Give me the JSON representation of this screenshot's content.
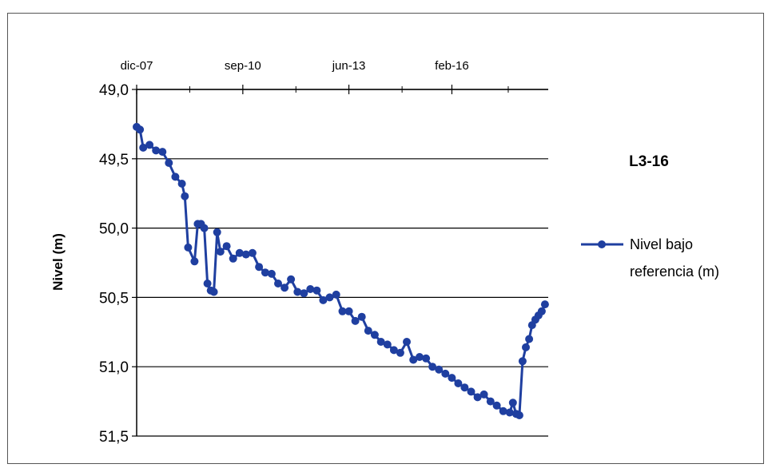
{
  "chart_data": {
    "type": "line",
    "title": "L3-16",
    "xlabel": "",
    "ylabel": "Nivel (m)",
    "x_tick_labels": [
      "dic-07",
      "sep-10",
      "jun-13",
      "feb-16"
    ],
    "x_tick_dates": [
      "2007-12-01",
      "2010-09-01",
      "2013-06-01",
      "2016-02-01"
    ],
    "xlim": [
      "2007-12-01",
      "2018-08-01"
    ],
    "ylim": [
      49.0,
      51.5
    ],
    "y_inverted": true,
    "y_ticks": [
      49.0,
      49.5,
      50.0,
      50.5,
      51.0,
      51.5
    ],
    "y_tick_labels": [
      "49,0",
      "49,5",
      "50,0",
      "50,5",
      "51,0",
      "51,5"
    ],
    "x_axis_position": "top",
    "grid": "horizontal",
    "legend_position": "right",
    "series": [
      {
        "name": "Nivel bajo referencia (m)",
        "color": "#1f3fa0",
        "points": [
          [
            "2007-12-01",
            49.27
          ],
          [
            "2008-01-01",
            49.29
          ],
          [
            "2008-02-01",
            49.42
          ],
          [
            "2008-04-01",
            49.4
          ],
          [
            "2008-06-01",
            49.44
          ],
          [
            "2008-08-01",
            49.45
          ],
          [
            "2008-10-01",
            49.53
          ],
          [
            "2008-12-01",
            49.63
          ],
          [
            "2009-02-01",
            49.68
          ],
          [
            "2009-03-01",
            49.77
          ],
          [
            "2009-04-01",
            50.14
          ],
          [
            "2009-06-01",
            50.24
          ],
          [
            "2009-07-01",
            49.97
          ],
          [
            "2009-08-01",
            49.97
          ],
          [
            "2009-09-01",
            50.0
          ],
          [
            "2009-10-01",
            50.4
          ],
          [
            "2009-11-01",
            50.45
          ],
          [
            "2009-12-01",
            50.46
          ],
          [
            "2010-01-01",
            50.03
          ],
          [
            "2010-02-01",
            50.17
          ],
          [
            "2010-04-01",
            50.13
          ],
          [
            "2010-06-01",
            50.22
          ],
          [
            "2010-08-01",
            50.18
          ],
          [
            "2010-10-01",
            50.19
          ],
          [
            "2010-12-01",
            50.18
          ],
          [
            "2011-02-01",
            50.28
          ],
          [
            "2011-04-01",
            50.32
          ],
          [
            "2011-06-01",
            50.33
          ],
          [
            "2011-08-01",
            50.4
          ],
          [
            "2011-10-01",
            50.43
          ],
          [
            "2011-12-01",
            50.37
          ],
          [
            "2012-02-01",
            50.46
          ],
          [
            "2012-04-01",
            50.47
          ],
          [
            "2012-06-01",
            50.44
          ],
          [
            "2012-08-01",
            50.45
          ],
          [
            "2012-10-01",
            50.52
          ],
          [
            "2012-12-01",
            50.5
          ],
          [
            "2013-02-01",
            50.48
          ],
          [
            "2013-04-01",
            50.6
          ],
          [
            "2013-06-01",
            50.6
          ],
          [
            "2013-08-01",
            50.67
          ],
          [
            "2013-10-01",
            50.64
          ],
          [
            "2013-12-01",
            50.74
          ],
          [
            "2014-02-01",
            50.77
          ],
          [
            "2014-04-01",
            50.82
          ],
          [
            "2014-06-01",
            50.84
          ],
          [
            "2014-08-01",
            50.88
          ],
          [
            "2014-10-01",
            50.9
          ],
          [
            "2014-12-01",
            50.82
          ],
          [
            "2015-02-01",
            50.95
          ],
          [
            "2015-04-01",
            50.93
          ],
          [
            "2015-06-01",
            50.94
          ],
          [
            "2015-08-01",
            51.0
          ],
          [
            "2015-10-01",
            51.02
          ],
          [
            "2015-12-01",
            51.05
          ],
          [
            "2016-02-01",
            51.08
          ],
          [
            "2016-04-01",
            51.12
          ],
          [
            "2016-06-01",
            51.15
          ],
          [
            "2016-08-01",
            51.18
          ],
          [
            "2016-10-01",
            51.22
          ],
          [
            "2016-12-01",
            51.2
          ],
          [
            "2017-02-01",
            51.25
          ],
          [
            "2017-04-01",
            51.28
          ],
          [
            "2017-06-01",
            51.32
          ],
          [
            "2017-08-01",
            51.33
          ],
          [
            "2017-09-01",
            51.26
          ],
          [
            "2017-10-01",
            51.34
          ],
          [
            "2017-11-01",
            51.35
          ],
          [
            "2017-12-01",
            50.96
          ],
          [
            "2018-01-01",
            50.86
          ],
          [
            "2018-02-01",
            50.8
          ],
          [
            "2018-03-01",
            50.7
          ],
          [
            "2018-04-01",
            50.66
          ],
          [
            "2018-05-01",
            50.63
          ],
          [
            "2018-06-01",
            50.6
          ],
          [
            "2018-07-01",
            50.55
          ]
        ]
      }
    ]
  }
}
